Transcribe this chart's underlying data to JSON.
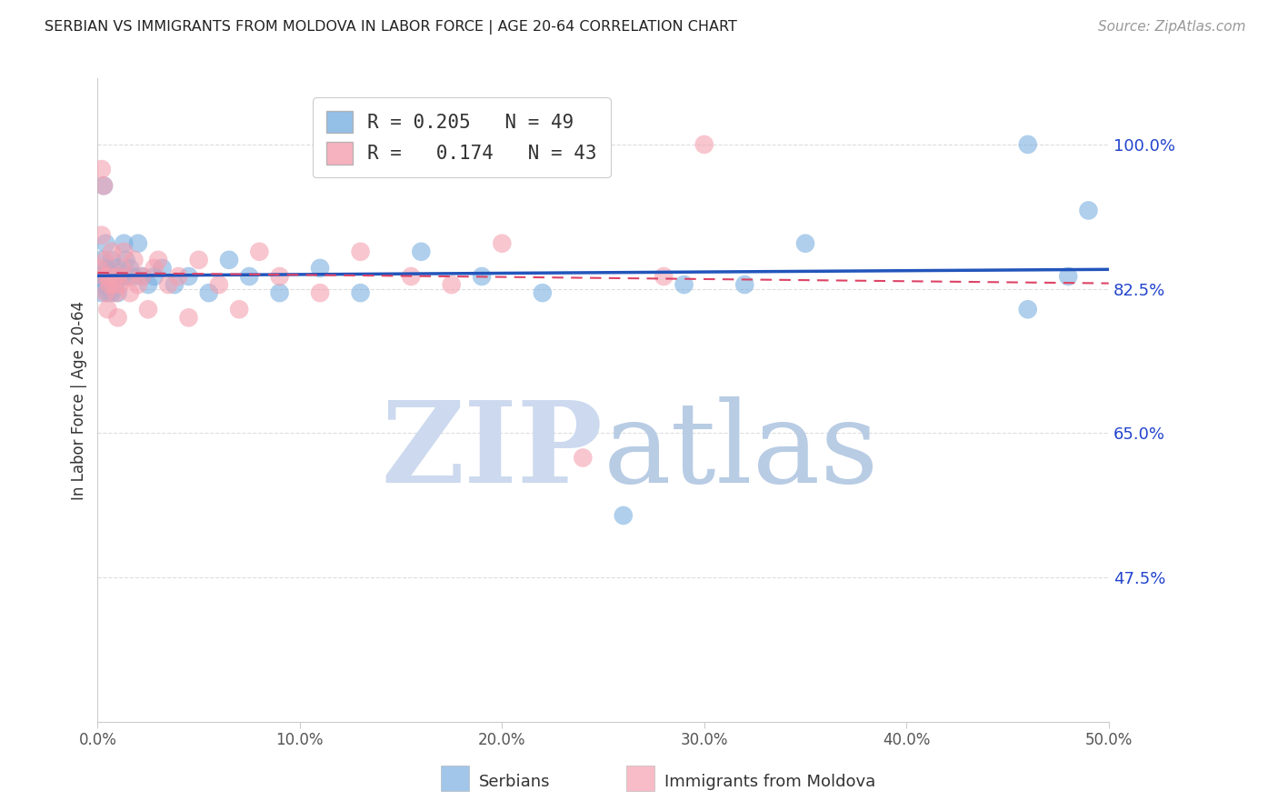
{
  "title": "SERBIAN VS IMMIGRANTS FROM MOLDOVA IN LABOR FORCE | AGE 20-64 CORRELATION CHART",
  "source": "Source: ZipAtlas.com",
  "ylabel": "In Labor Force | Age 20-64",
  "xlim": [
    0.0,
    0.5
  ],
  "ylim": [
    0.3,
    1.08
  ],
  "xtick_vals": [
    0.0,
    0.1,
    0.2,
    0.3,
    0.4,
    0.5
  ],
  "xtick_labels": [
    "0.0%",
    "10.0%",
    "20.0%",
    "30.0%",
    "40.0%",
    "50.0%"
  ],
  "ytick_positions": [
    0.475,
    0.65,
    0.825,
    1.0
  ],
  "ytick_labels": [
    "47.5%",
    "65.0%",
    "82.5%",
    "100.0%"
  ],
  "legend_blue_r": "0.205",
  "legend_blue_n": "49",
  "legend_pink_r": "0.174",
  "legend_pink_n": "43",
  "legend_label_blue": "Serbians",
  "legend_label_pink": "Immigrants from Moldova",
  "blue_color": "#7aafe0",
  "pink_color": "#f4a0b0",
  "blue_line_color": "#2255bb",
  "pink_line_color": "#dd4466",
  "background_color": "#ffffff",
  "watermark_zip": "ZIP",
  "watermark_atlas": "atlas",
  "watermark_color_zip": "#ccd9ee",
  "watermark_color_atlas": "#b8cce4",
  "blue_x": [
    0.001,
    0.002,
    0.002,
    0.003,
    0.003,
    0.004,
    0.004,
    0.005,
    0.005,
    0.006,
    0.006,
    0.007,
    0.007,
    0.008,
    0.008,
    0.009,
    0.01,
    0.01,
    0.011,
    0.012,
    0.013,
    0.014,
    0.015,
    0.016,
    0.018,
    0.02,
    0.022,
    0.025,
    0.028,
    0.032,
    0.038,
    0.045,
    0.055,
    0.065,
    0.075,
    0.09,
    0.11,
    0.13,
    0.16,
    0.19,
    0.22,
    0.26,
    0.29,
    0.32,
    0.35,
    0.46,
    0.46,
    0.48,
    0.49
  ],
  "blue_y": [
    0.84,
    0.86,
    0.82,
    0.95,
    0.83,
    0.88,
    0.84,
    0.82,
    0.85,
    0.84,
    0.83,
    0.86,
    0.82,
    0.84,
    0.83,
    0.85,
    0.84,
    0.82,
    0.84,
    0.84,
    0.88,
    0.86,
    0.84,
    0.85,
    0.84,
    0.88,
    0.84,
    0.83,
    0.84,
    0.85,
    0.83,
    0.84,
    0.82,
    0.86,
    0.84,
    0.82,
    0.85,
    0.82,
    0.87,
    0.84,
    0.82,
    0.55,
    0.83,
    0.83,
    0.88,
    0.8,
    1.0,
    0.84,
    0.92
  ],
  "pink_x": [
    0.001,
    0.002,
    0.002,
    0.003,
    0.003,
    0.004,
    0.004,
    0.005,
    0.005,
    0.006,
    0.006,
    0.007,
    0.008,
    0.009,
    0.01,
    0.01,
    0.011,
    0.012,
    0.013,
    0.015,
    0.016,
    0.018,
    0.02,
    0.022,
    0.025,
    0.028,
    0.03,
    0.035,
    0.04,
    0.045,
    0.05,
    0.06,
    0.07,
    0.08,
    0.09,
    0.11,
    0.13,
    0.155,
    0.175,
    0.2,
    0.24,
    0.28,
    0.3
  ],
  "pink_y": [
    0.85,
    0.97,
    0.89,
    0.95,
    0.84,
    0.86,
    0.82,
    0.84,
    0.8,
    0.84,
    0.83,
    0.87,
    0.83,
    0.82,
    0.84,
    0.79,
    0.83,
    0.85,
    0.87,
    0.84,
    0.82,
    0.86,
    0.83,
    0.84,
    0.8,
    0.85,
    0.86,
    0.83,
    0.84,
    0.79,
    0.86,
    0.83,
    0.8,
    0.87,
    0.84,
    0.82,
    0.87,
    0.84,
    0.83,
    0.88,
    0.62,
    0.84,
    1.0
  ]
}
